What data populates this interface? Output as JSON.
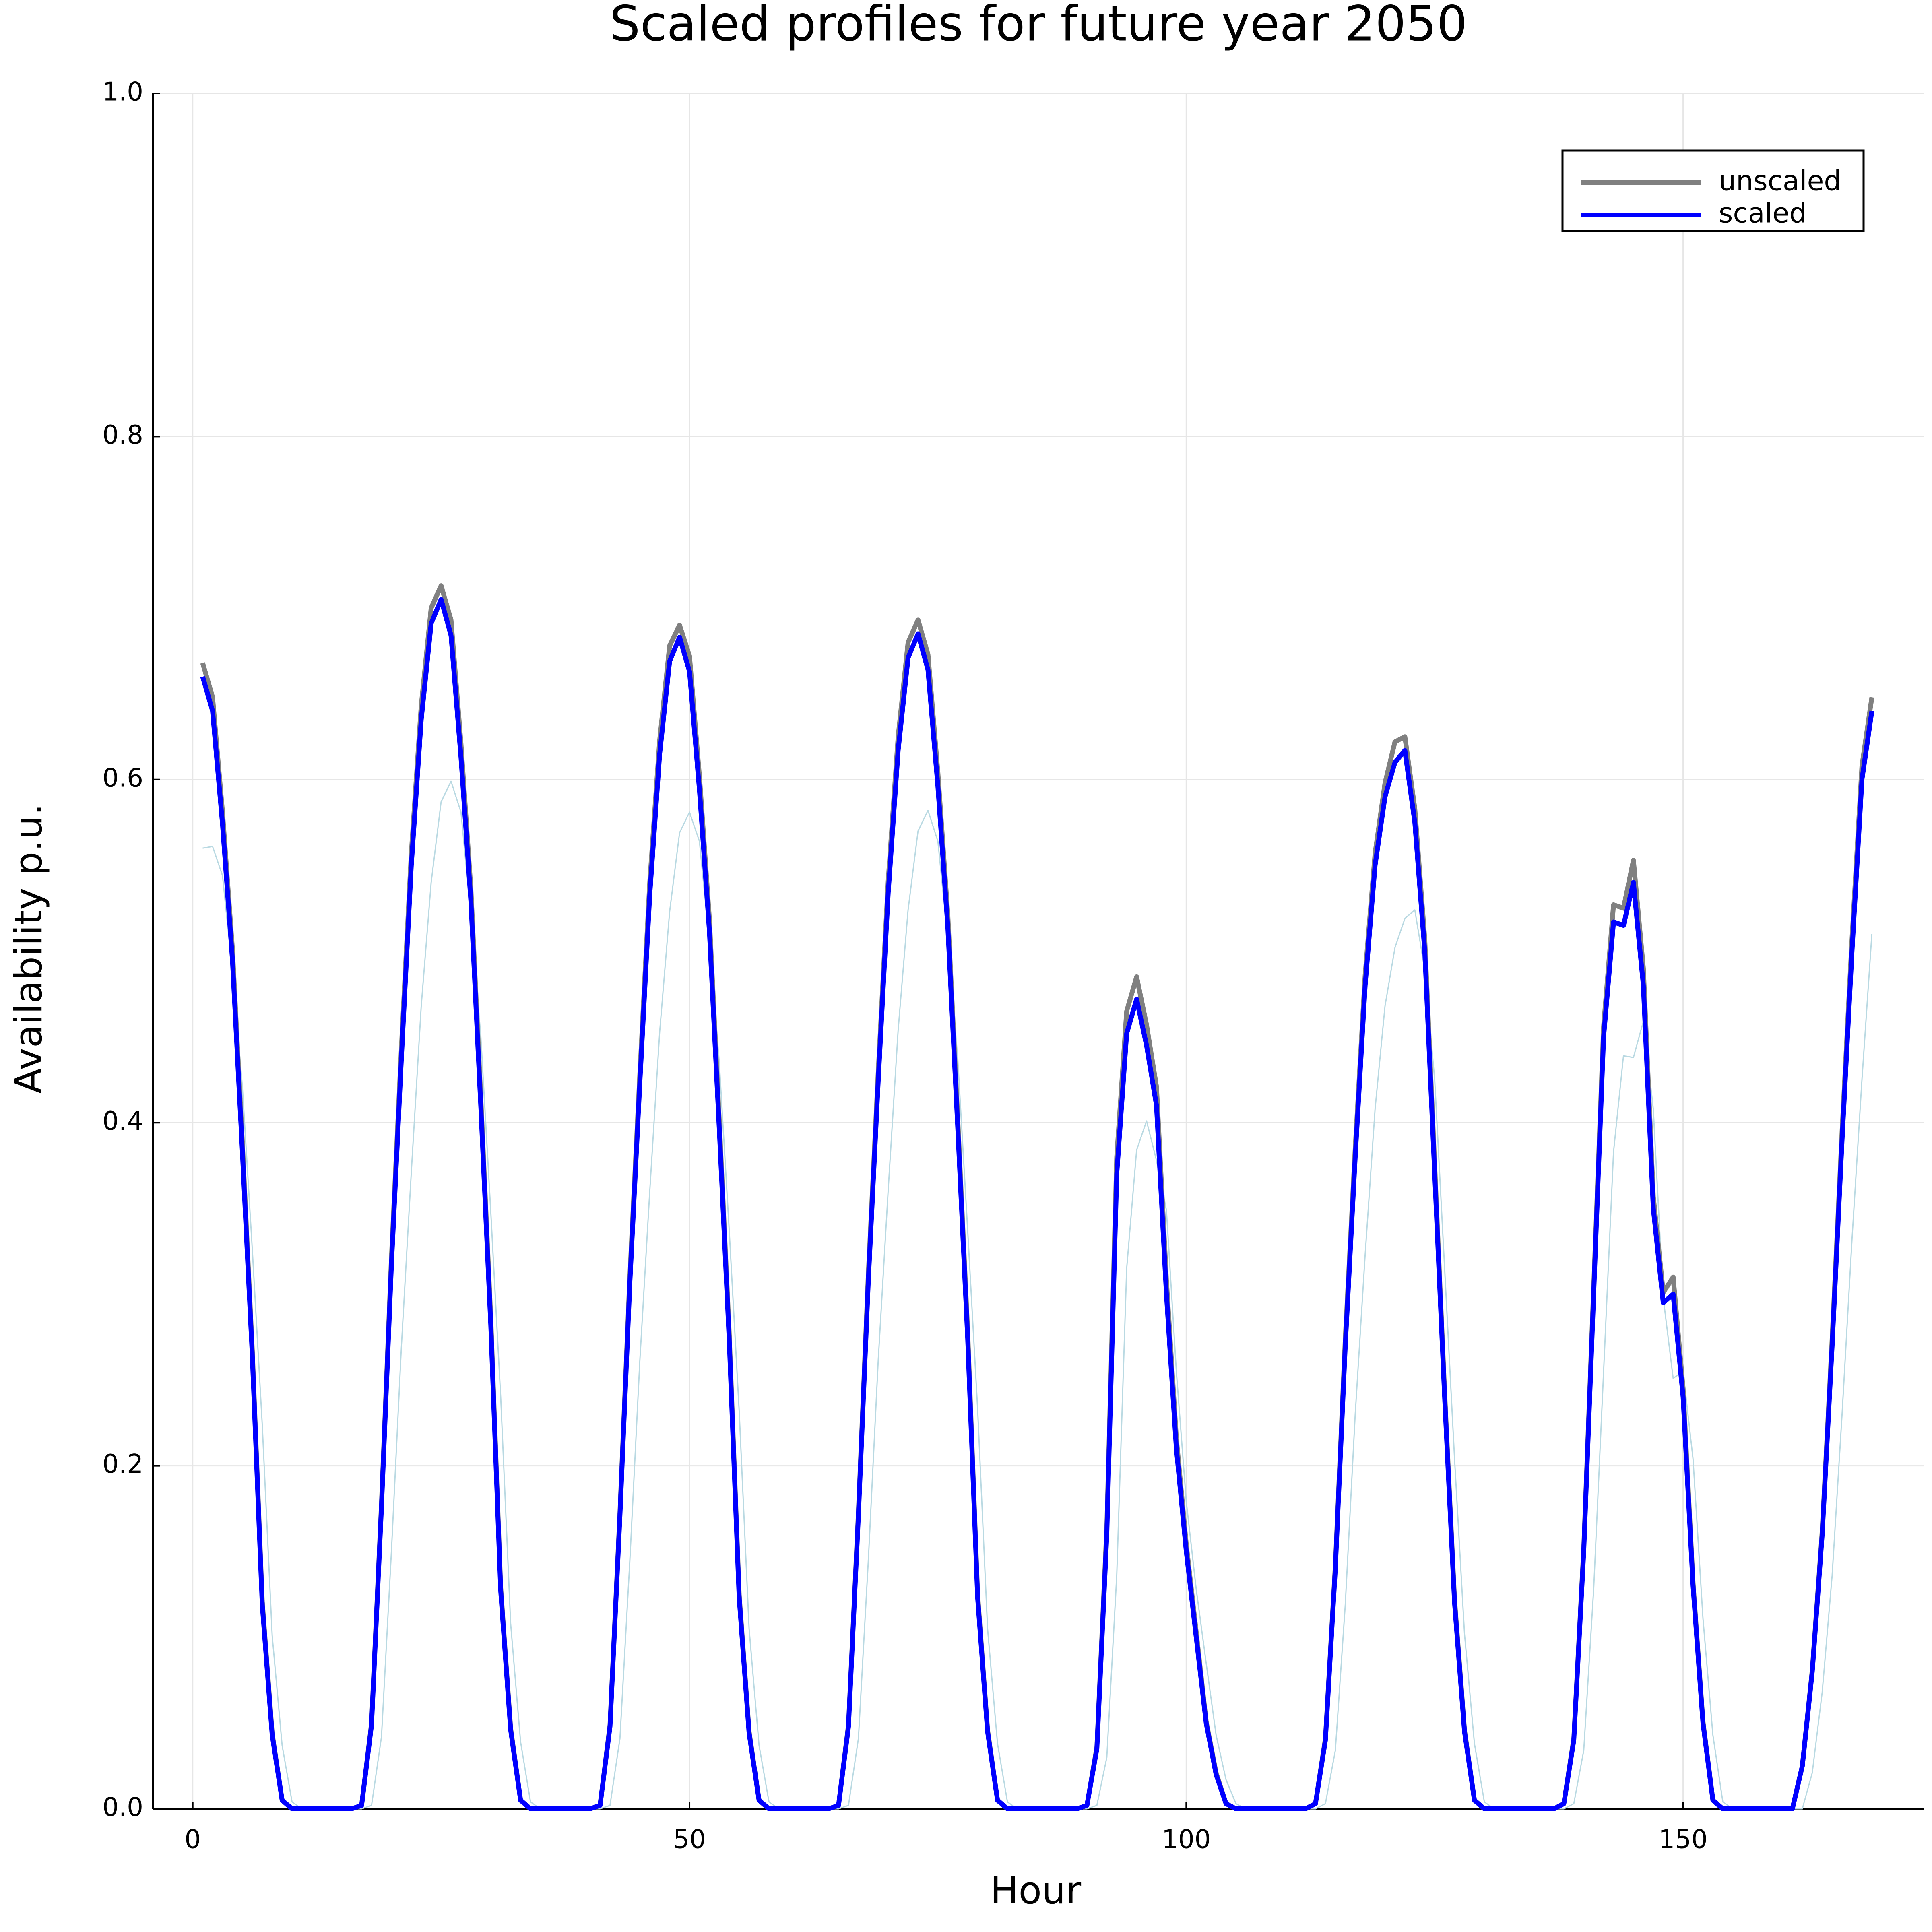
{
  "chart_data": {
    "type": "line",
    "title": "Scaled profiles for future year 2050",
    "x_label": "Hour",
    "y_label": "Availability p.u.",
    "x": [
      1,
      2,
      3,
      4,
      5,
      6,
      7,
      8,
      9,
      10,
      11,
      12,
      13,
      14,
      15,
      16,
      17,
      18,
      19,
      20,
      21,
      22,
      23,
      24,
      25,
      26,
      27,
      28,
      29,
      30,
      31,
      32,
      33,
      34,
      35,
      36,
      37,
      38,
      39,
      40,
      41,
      42,
      43,
      44,
      45,
      46,
      47,
      48,
      49,
      50,
      51,
      52,
      53,
      54,
      55,
      56,
      57,
      58,
      59,
      60,
      61,
      62,
      63,
      64,
      65,
      66,
      67,
      68,
      69,
      70,
      71,
      72,
      73,
      74,
      75,
      76,
      77,
      78,
      79,
      80,
      81,
      82,
      83,
      84,
      85,
      86,
      87,
      88,
      89,
      90,
      91,
      92,
      93,
      94,
      95,
      96,
      97,
      98,
      99,
      100,
      101,
      102,
      103,
      104,
      105,
      106,
      107,
      108,
      109,
      110,
      111,
      112,
      113,
      114,
      115,
      116,
      117,
      118,
      119,
      120,
      121,
      122,
      123,
      124,
      125,
      126,
      127,
      128,
      129,
      130,
      131,
      132,
      133,
      134,
      135,
      136,
      137,
      138,
      139,
      140,
      141,
      142,
      143,
      144,
      145,
      146,
      147,
      148,
      149,
      150,
      151,
      152,
      153,
      154,
      155,
      156,
      157,
      158,
      159,
      160,
      161,
      162,
      163,
      164,
      165,
      166,
      167,
      168,
      169
    ],
    "series": [
      {
        "color": "#b9d9e2",
        "width": 3,
        "values": [
          0.56,
          0.561,
          0.544,
          0.488,
          0.421,
          0.326,
          0.224,
          0.101,
          0.037,
          0.004,
          0,
          0,
          0,
          0,
          0,
          0,
          0,
          0.002,
          0.042,
          0.15,
          0.269,
          0.371,
          0.468,
          0.54,
          0.587,
          0.599,
          0.581,
          0.521,
          0.45,
          0.348,
          0.24,
          0.108,
          0.039,
          0.004,
          0,
          0,
          0,
          0,
          0,
          0,
          0,
          0.002,
          0.041,
          0.145,
          0.261,
          0.36,
          0.453,
          0.523,
          0.569,
          0.581,
          0.564,
          0.505,
          0.435,
          0.337,
          0.232,
          0.105,
          0.037,
          0.004,
          0,
          0,
          0,
          0,
          0,
          0,
          0,
          0.002,
          0.041,
          0.145,
          0.262,
          0.361,
          0.454,
          0.524,
          0.57,
          0.582,
          0.564,
          0.507,
          0.437,
          0.337,
          0.233,
          0.105,
          0.038,
          0.004,
          0,
          0,
          0,
          0,
          0,
          0,
          0,
          0,
          0.002,
          0.03,
          0.136,
          0.315,
          0.384,
          0.401,
          0.378,
          0.349,
          0.255,
          0.179,
          0.128,
          0.085,
          0.043,
          0.017,
          0.003,
          0,
          0,
          0,
          0,
          0,
          0,
          0,
          0,
          0.003,
          0.034,
          0.119,
          0.23,
          0.323,
          0.408,
          0.468,
          0.502,
          0.519,
          0.524,
          0.489,
          0.425,
          0.315,
          0.204,
          0.102,
          0.038,
          0.004,
          0,
          0,
          0,
          0,
          0,
          0,
          0,
          0,
          0.003,
          0.034,
          0.128,
          0.255,
          0.383,
          0.439,
          0.438,
          0.459,
          0.408,
          0.298,
          0.251,
          0.255,
          0.204,
          0.111,
          0.043,
          0.004,
          0,
          0,
          0,
          0,
          0,
          0,
          0,
          0,
          0.021,
          0.068,
          0.136,
          0.23,
          0.332,
          0.425,
          0.51
        ]
      },
      {
        "name": "unscaled",
        "color": "#808080",
        "width": 12,
        "values": [
          0.668,
          0.648,
          0.581,
          0.501,
          0.388,
          0.267,
          0.121,
          0.044,
          0.005,
          0,
          0,
          0,
          0,
          0,
          0,
          0,
          0.002,
          0.05,
          0.178,
          0.321,
          0.443,
          0.557,
          0.643,
          0.7,
          0.713,
          0.693,
          0.621,
          0.536,
          0.414,
          0.286,
          0.129,
          0.047,
          0.005,
          0,
          0,
          0,
          0,
          0,
          0,
          0,
          0.002,
          0.049,
          0.173,
          0.311,
          0.428,
          0.54,
          0.623,
          0.678,
          0.69,
          0.672,
          0.602,
          0.519,
          0.401,
          0.277,
          0.125,
          0.045,
          0.005,
          0,
          0,
          0,
          0,
          0,
          0,
          0,
          0.002,
          0.049,
          0.173,
          0.312,
          0.43,
          0.541,
          0.625,
          0.68,
          0.693,
          0.673,
          0.604,
          0.521,
          0.402,
          0.278,
          0.125,
          0.046,
          0.005,
          0,
          0,
          0,
          0,
          0,
          0,
          0,
          0,
          0.002,
          0.036,
          0.164,
          0.38,
          0.465,
          0.485,
          0.457,
          0.421,
          0.308,
          0.216,
          0.154,
          0.103,
          0.051,
          0.021,
          0.003,
          0,
          0,
          0,
          0,
          0,
          0,
          0,
          0,
          0.003,
          0.041,
          0.142,
          0.274,
          0.385,
          0.486,
          0.557,
          0.598,
          0.622,
          0.625,
          0.583,
          0.507,
          0.375,
          0.243,
          0.122,
          0.046,
          0.005,
          0,
          0,
          0,
          0,
          0,
          0,
          0,
          0,
          0.003,
          0.041,
          0.152,
          0.304,
          0.456,
          0.527,
          0.525,
          0.553,
          0.49,
          0.357,
          0.301,
          0.31,
          0.245,
          0.132,
          0.051,
          0.005,
          0,
          0,
          0,
          0,
          0,
          0,
          0,
          0,
          0.025,
          0.081,
          0.162,
          0.274,
          0.395,
          0.507,
          0.608,
          0.648
        ]
      },
      {
        "name": "scaled",
        "color": "#0000ff",
        "width": 12,
        "values": [
          0.66,
          0.64,
          0.574,
          0.495,
          0.383,
          0.264,
          0.119,
          0.043,
          0.005,
          0,
          0,
          0,
          0,
          0,
          0,
          0,
          0.002,
          0.049,
          0.176,
          0.317,
          0.437,
          0.55,
          0.635,
          0.691,
          0.705,
          0.684,
          0.613,
          0.529,
          0.409,
          0.282,
          0.127,
          0.046,
          0.005,
          0,
          0,
          0,
          0,
          0,
          0,
          0,
          0.002,
          0.048,
          0.171,
          0.307,
          0.423,
          0.533,
          0.615,
          0.669,
          0.683,
          0.663,
          0.594,
          0.512,
          0.396,
          0.273,
          0.123,
          0.044,
          0.005,
          0,
          0,
          0,
          0,
          0,
          0,
          0,
          0.002,
          0.048,
          0.171,
          0.308,
          0.425,
          0.534,
          0.617,
          0.671,
          0.685,
          0.664,
          0.596,
          0.514,
          0.397,
          0.274,
          0.123,
          0.045,
          0.005,
          0,
          0,
          0,
          0,
          0,
          0,
          0,
          0,
          0.002,
          0.035,
          0.16,
          0.37,
          0.452,
          0.472,
          0.445,
          0.41,
          0.3,
          0.21,
          0.15,
          0.1,
          0.05,
          0.02,
          0.003,
          0,
          0,
          0,
          0,
          0,
          0,
          0,
          0,
          0.003,
          0.04,
          0.14,
          0.27,
          0.38,
          0.48,
          0.55,
          0.59,
          0.61,
          0.617,
          0.575,
          0.5,
          0.37,
          0.24,
          0.12,
          0.045,
          0.005,
          0,
          0,
          0,
          0,
          0,
          0,
          0,
          0,
          0.003,
          0.04,
          0.15,
          0.3,
          0.45,
          0.517,
          0.515,
          0.54,
          0.48,
          0.35,
          0.295,
          0.3,
          0.24,
          0.13,
          0.05,
          0.005,
          0,
          0,
          0,
          0,
          0,
          0,
          0,
          0,
          0.025,
          0.08,
          0.16,
          0.27,
          0.39,
          0.5,
          0.6,
          0.64
        ]
      }
    ],
    "xlim": [
      -4,
      174.2
    ],
    "ylim": [
      0,
      1
    ],
    "xticks": [
      0,
      50,
      100,
      150
    ],
    "yticks": [
      {
        "value": 0,
        "label": "0.0"
      },
      0.2,
      0.4,
      0.6,
      0.8,
      {
        "value": 1,
        "label": "1.0"
      }
    ],
    "grid": true,
    "legend": "top-right"
  }
}
